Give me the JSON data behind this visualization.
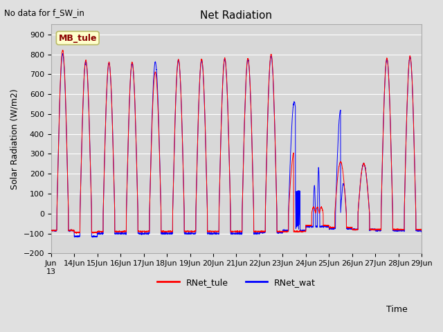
{
  "title": "Net Radiation",
  "ylabel": "Solar Radiation (W/m2)",
  "xlabel": "Time",
  "note": "No data for f_SW_in",
  "site_label": "MB_tule",
  "ylim": [
    -200,
    950
  ],
  "yticks": [
    -200,
    -100,
    0,
    100,
    200,
    300,
    400,
    500,
    600,
    700,
    800,
    900
  ],
  "background_color": "#e0e0e0",
  "plot_bg_color": "#d8d8d8",
  "grid_color": "#ffffff",
  "line1_color": "red",
  "line2_color": "blue",
  "line1_label": "RNet_tule",
  "line2_label": "RNet_wat",
  "n_points": 3840
}
